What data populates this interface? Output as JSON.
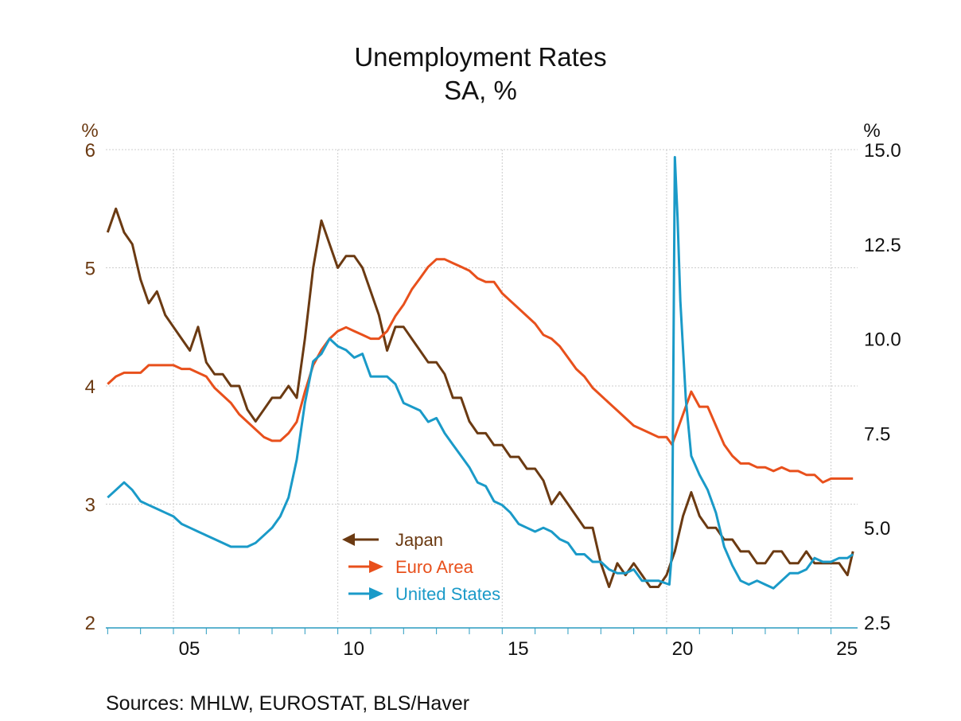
{
  "chart_data": {
    "type": "line",
    "title": "Unemployment Rates",
    "subtitle": "SA, %",
    "left_axis": {
      "label": "%",
      "range": [
        2,
        6
      ],
      "ticks": [
        "2",
        "3",
        "4",
        "5",
        "6"
      ],
      "color": "#6b3a12"
    },
    "right_axis": {
      "label": "%",
      "range": [
        2.5,
        15.0
      ],
      "ticks": [
        "2.5",
        "5.0",
        "7.5",
        "10.0",
        "12.5",
        "15.0"
      ]
    },
    "x_axis": {
      "range": [
        "2003-01",
        "2025-10"
      ],
      "tick_labels": [
        "05",
        "10",
        "15",
        "20",
        "25"
      ],
      "tick_years": [
        2005,
        2010,
        2015,
        2020,
        2025
      ]
    },
    "grid": true,
    "legend_placement": "bottom-center",
    "source": "Sources:  MHLW, EUROSTAT, BLS/Haver",
    "series": [
      {
        "name": "Japan",
        "axis": "left",
        "color": "#6b3a12",
        "points": [
          [
            "2003-01",
            5.3
          ],
          [
            "2003-04",
            5.5
          ],
          [
            "2003-07",
            5.3
          ],
          [
            "2003-10",
            5.2
          ],
          [
            "2004-01",
            4.9
          ],
          [
            "2004-04",
            4.7
          ],
          [
            "2004-07",
            4.8
          ],
          [
            "2004-10",
            4.6
          ],
          [
            "2005-01",
            4.5
          ],
          [
            "2005-04",
            4.4
          ],
          [
            "2005-07",
            4.3
          ],
          [
            "2005-10",
            4.5
          ],
          [
            "2006-01",
            4.2
          ],
          [
            "2006-04",
            4.1
          ],
          [
            "2006-07",
            4.1
          ],
          [
            "2006-10",
            4.0
          ],
          [
            "2007-01",
            4.0
          ],
          [
            "2007-04",
            3.8
          ],
          [
            "2007-07",
            3.7
          ],
          [
            "2007-10",
            3.8
          ],
          [
            "2008-01",
            3.9
          ],
          [
            "2008-04",
            3.9
          ],
          [
            "2008-07",
            4.0
          ],
          [
            "2008-10",
            3.9
          ],
          [
            "2009-01",
            4.4
          ],
          [
            "2009-04",
            5.0
          ],
          [
            "2009-07",
            5.4
          ],
          [
            "2009-10",
            5.2
          ],
          [
            "2010-01",
            5.0
          ],
          [
            "2010-04",
            5.1
          ],
          [
            "2010-07",
            5.1
          ],
          [
            "2010-10",
            5.0
          ],
          [
            "2011-01",
            4.8
          ],
          [
            "2011-04",
            4.6
          ],
          [
            "2011-07",
            4.3
          ],
          [
            "2011-10",
            4.5
          ],
          [
            "2012-01",
            4.5
          ],
          [
            "2012-04",
            4.4
          ],
          [
            "2012-07",
            4.3
          ],
          [
            "2012-10",
            4.2
          ],
          [
            "2013-01",
            4.2
          ],
          [
            "2013-04",
            4.1
          ],
          [
            "2013-07",
            3.9
          ],
          [
            "2013-10",
            3.9
          ],
          [
            "2014-01",
            3.7
          ],
          [
            "2014-04",
            3.6
          ],
          [
            "2014-07",
            3.6
          ],
          [
            "2014-10",
            3.5
          ],
          [
            "2015-01",
            3.5
          ],
          [
            "2015-04",
            3.4
          ],
          [
            "2015-07",
            3.4
          ],
          [
            "2015-10",
            3.3
          ],
          [
            "2016-01",
            3.3
          ],
          [
            "2016-04",
            3.2
          ],
          [
            "2016-07",
            3.0
          ],
          [
            "2016-10",
            3.1
          ],
          [
            "2017-01",
            3.0
          ],
          [
            "2017-04",
            2.9
          ],
          [
            "2017-07",
            2.8
          ],
          [
            "2017-10",
            2.8
          ],
          [
            "2018-01",
            2.5
          ],
          [
            "2018-04",
            2.3
          ],
          [
            "2018-07",
            2.5
          ],
          [
            "2018-10",
            2.4
          ],
          [
            "2019-01",
            2.5
          ],
          [
            "2019-04",
            2.4
          ],
          [
            "2019-07",
            2.3
          ],
          [
            "2019-10",
            2.3
          ],
          [
            "2020-01",
            2.4
          ],
          [
            "2020-04",
            2.6
          ],
          [
            "2020-07",
            2.9
          ],
          [
            "2020-10",
            3.1
          ],
          [
            "2021-01",
            2.9
          ],
          [
            "2021-04",
            2.8
          ],
          [
            "2021-07",
            2.8
          ],
          [
            "2021-10",
            2.7
          ],
          [
            "2022-01",
            2.7
          ],
          [
            "2022-04",
            2.6
          ],
          [
            "2022-07",
            2.6
          ],
          [
            "2022-10",
            2.5
          ],
          [
            "2023-01",
            2.5
          ],
          [
            "2023-04",
            2.6
          ],
          [
            "2023-07",
            2.6
          ],
          [
            "2023-10",
            2.5
          ],
          [
            "2024-01",
            2.5
          ],
          [
            "2024-04",
            2.6
          ],
          [
            "2024-07",
            2.5
          ],
          [
            "2024-10",
            2.5
          ],
          [
            "2025-01",
            2.5
          ],
          [
            "2025-04",
            2.5
          ],
          [
            "2025-07",
            2.4
          ],
          [
            "2025-09",
            2.6
          ]
        ]
      },
      {
        "name": "Euro Area",
        "axis": "right",
        "color": "#e8501c",
        "points": [
          [
            "2003-01",
            8.8
          ],
          [
            "2003-04",
            9.0
          ],
          [
            "2003-07",
            9.1
          ],
          [
            "2003-10",
            9.1
          ],
          [
            "2004-01",
            9.1
          ],
          [
            "2004-04",
            9.3
          ],
          [
            "2004-07",
            9.3
          ],
          [
            "2004-10",
            9.3
          ],
          [
            "2005-01",
            9.3
          ],
          [
            "2005-04",
            9.2
          ],
          [
            "2005-07",
            9.2
          ],
          [
            "2005-10",
            9.1
          ],
          [
            "2006-01",
            9.0
          ],
          [
            "2006-04",
            8.7
          ],
          [
            "2006-07",
            8.5
          ],
          [
            "2006-10",
            8.3
          ],
          [
            "2007-01",
            8.0
          ],
          [
            "2007-04",
            7.8
          ],
          [
            "2007-07",
            7.6
          ],
          [
            "2007-10",
            7.4
          ],
          [
            "2008-01",
            7.3
          ],
          [
            "2008-04",
            7.3
          ],
          [
            "2008-07",
            7.5
          ],
          [
            "2008-10",
            7.8
          ],
          [
            "2009-01",
            8.6
          ],
          [
            "2009-04",
            9.3
          ],
          [
            "2009-07",
            9.7
          ],
          [
            "2009-10",
            10.0
          ],
          [
            "2010-01",
            10.2
          ],
          [
            "2010-04",
            10.3
          ],
          [
            "2010-07",
            10.2
          ],
          [
            "2010-10",
            10.1
          ],
          [
            "2011-01",
            10.0
          ],
          [
            "2011-04",
            10.0
          ],
          [
            "2011-07",
            10.2
          ],
          [
            "2011-10",
            10.6
          ],
          [
            "2012-01",
            10.9
          ],
          [
            "2012-04",
            11.3
          ],
          [
            "2012-07",
            11.6
          ],
          [
            "2012-10",
            11.9
          ],
          [
            "2013-01",
            12.1
          ],
          [
            "2013-04",
            12.1
          ],
          [
            "2013-07",
            12.0
          ],
          [
            "2013-10",
            11.9
          ],
          [
            "2014-01",
            11.8
          ],
          [
            "2014-04",
            11.6
          ],
          [
            "2014-07",
            11.5
          ],
          [
            "2014-10",
            11.5
          ],
          [
            "2015-01",
            11.2
          ],
          [
            "2015-04",
            11.0
          ],
          [
            "2015-07",
            10.8
          ],
          [
            "2015-10",
            10.6
          ],
          [
            "2016-01",
            10.4
          ],
          [
            "2016-04",
            10.1
          ],
          [
            "2016-07",
            10.0
          ],
          [
            "2016-10",
            9.8
          ],
          [
            "2017-01",
            9.5
          ],
          [
            "2017-04",
            9.2
          ],
          [
            "2017-07",
            9.0
          ],
          [
            "2017-10",
            8.7
          ],
          [
            "2018-01",
            8.5
          ],
          [
            "2018-04",
            8.3
          ],
          [
            "2018-07",
            8.1
          ],
          [
            "2018-10",
            7.9
          ],
          [
            "2019-01",
            7.7
          ],
          [
            "2019-04",
            7.6
          ],
          [
            "2019-07",
            7.5
          ],
          [
            "2019-10",
            7.4
          ],
          [
            "2020-01",
            7.4
          ],
          [
            "2020-03",
            7.2
          ],
          [
            "2020-07",
            8.0
          ],
          [
            "2020-10",
            8.6
          ],
          [
            "2021-01",
            8.2
          ],
          [
            "2021-04",
            8.2
          ],
          [
            "2021-07",
            7.7
          ],
          [
            "2021-10",
            7.2
          ],
          [
            "2022-01",
            6.9
          ],
          [
            "2022-04",
            6.7
          ],
          [
            "2022-07",
            6.7
          ],
          [
            "2022-10",
            6.6
          ],
          [
            "2023-01",
            6.6
          ],
          [
            "2023-04",
            6.5
          ],
          [
            "2023-07",
            6.6
          ],
          [
            "2023-10",
            6.5
          ],
          [
            "2024-01",
            6.5
          ],
          [
            "2024-04",
            6.4
          ],
          [
            "2024-07",
            6.4
          ],
          [
            "2024-10",
            6.2
          ],
          [
            "2025-01",
            6.3
          ],
          [
            "2025-04",
            6.3
          ],
          [
            "2025-07",
            6.3
          ],
          [
            "2025-09",
            6.3
          ]
        ]
      },
      {
        "name": "United States",
        "axis": "right",
        "color": "#1a9ac8",
        "points": [
          [
            "2003-01",
            5.8
          ],
          [
            "2003-04",
            6.0
          ],
          [
            "2003-07",
            6.2
          ],
          [
            "2003-10",
            6.0
          ],
          [
            "2004-01",
            5.7
          ],
          [
            "2004-04",
            5.6
          ],
          [
            "2004-07",
            5.5
          ],
          [
            "2004-10",
            5.4
          ],
          [
            "2005-01",
            5.3
          ],
          [
            "2005-04",
            5.1
          ],
          [
            "2005-07",
            5.0
          ],
          [
            "2005-10",
            4.9
          ],
          [
            "2006-01",
            4.8
          ],
          [
            "2006-04",
            4.7
          ],
          [
            "2006-07",
            4.6
          ],
          [
            "2006-10",
            4.5
          ],
          [
            "2007-01",
            4.5
          ],
          [
            "2007-04",
            4.5
          ],
          [
            "2007-07",
            4.6
          ],
          [
            "2007-10",
            4.8
          ],
          [
            "2008-01",
            5.0
          ],
          [
            "2008-04",
            5.3
          ],
          [
            "2008-07",
            5.8
          ],
          [
            "2008-10",
            6.8
          ],
          [
            "2009-01",
            8.3
          ],
          [
            "2009-04",
            9.4
          ],
          [
            "2009-07",
            9.6
          ],
          [
            "2009-10",
            10.0
          ],
          [
            "2010-01",
            9.8
          ],
          [
            "2010-04",
            9.7
          ],
          [
            "2010-07",
            9.5
          ],
          [
            "2010-10",
            9.6
          ],
          [
            "2011-01",
            9.0
          ],
          [
            "2011-04",
            9.0
          ],
          [
            "2011-07",
            9.0
          ],
          [
            "2011-10",
            8.8
          ],
          [
            "2012-01",
            8.3
          ],
          [
            "2012-04",
            8.2
          ],
          [
            "2012-07",
            8.1
          ],
          [
            "2012-10",
            7.8
          ],
          [
            "2013-01",
            7.9
          ],
          [
            "2013-04",
            7.5
          ],
          [
            "2013-07",
            7.2
          ],
          [
            "2013-10",
            6.9
          ],
          [
            "2014-01",
            6.6
          ],
          [
            "2014-04",
            6.2
          ],
          [
            "2014-07",
            6.1
          ],
          [
            "2014-10",
            5.7
          ],
          [
            "2015-01",
            5.6
          ],
          [
            "2015-04",
            5.4
          ],
          [
            "2015-07",
            5.1
          ],
          [
            "2015-10",
            5.0
          ],
          [
            "2016-01",
            4.9
          ],
          [
            "2016-04",
            5.0
          ],
          [
            "2016-07",
            4.9
          ],
          [
            "2016-10",
            4.7
          ],
          [
            "2017-01",
            4.6
          ],
          [
            "2017-04",
            4.3
          ],
          [
            "2017-07",
            4.3
          ],
          [
            "2017-10",
            4.1
          ],
          [
            "2018-01",
            4.1
          ],
          [
            "2018-04",
            3.9
          ],
          [
            "2018-07",
            3.8
          ],
          [
            "2018-10",
            3.8
          ],
          [
            "2019-01",
            3.9
          ],
          [
            "2019-04",
            3.6
          ],
          [
            "2019-07",
            3.6
          ],
          [
            "2019-10",
            3.6
          ],
          [
            "2020-02",
            3.5
          ],
          [
            "2020-03",
            4.4
          ],
          [
            "2020-04",
            14.8
          ],
          [
            "2020-05",
            13.2
          ],
          [
            "2020-06",
            11.0
          ],
          [
            "2020-08",
            8.4
          ],
          [
            "2020-10",
            6.9
          ],
          [
            "2021-01",
            6.4
          ],
          [
            "2021-04",
            6.0
          ],
          [
            "2021-07",
            5.4
          ],
          [
            "2021-10",
            4.5
          ],
          [
            "2022-01",
            4.0
          ],
          [
            "2022-04",
            3.6
          ],
          [
            "2022-07",
            3.5
          ],
          [
            "2022-10",
            3.6
          ],
          [
            "2023-01",
            3.5
          ],
          [
            "2023-04",
            3.4
          ],
          [
            "2023-07",
            3.6
          ],
          [
            "2023-10",
            3.8
          ],
          [
            "2024-01",
            3.8
          ],
          [
            "2024-04",
            3.9
          ],
          [
            "2024-07",
            4.2
          ],
          [
            "2024-10",
            4.1
          ],
          [
            "2025-01",
            4.1
          ],
          [
            "2025-04",
            4.2
          ],
          [
            "2025-07",
            4.2
          ],
          [
            "2025-09",
            4.3
          ]
        ]
      }
    ]
  }
}
